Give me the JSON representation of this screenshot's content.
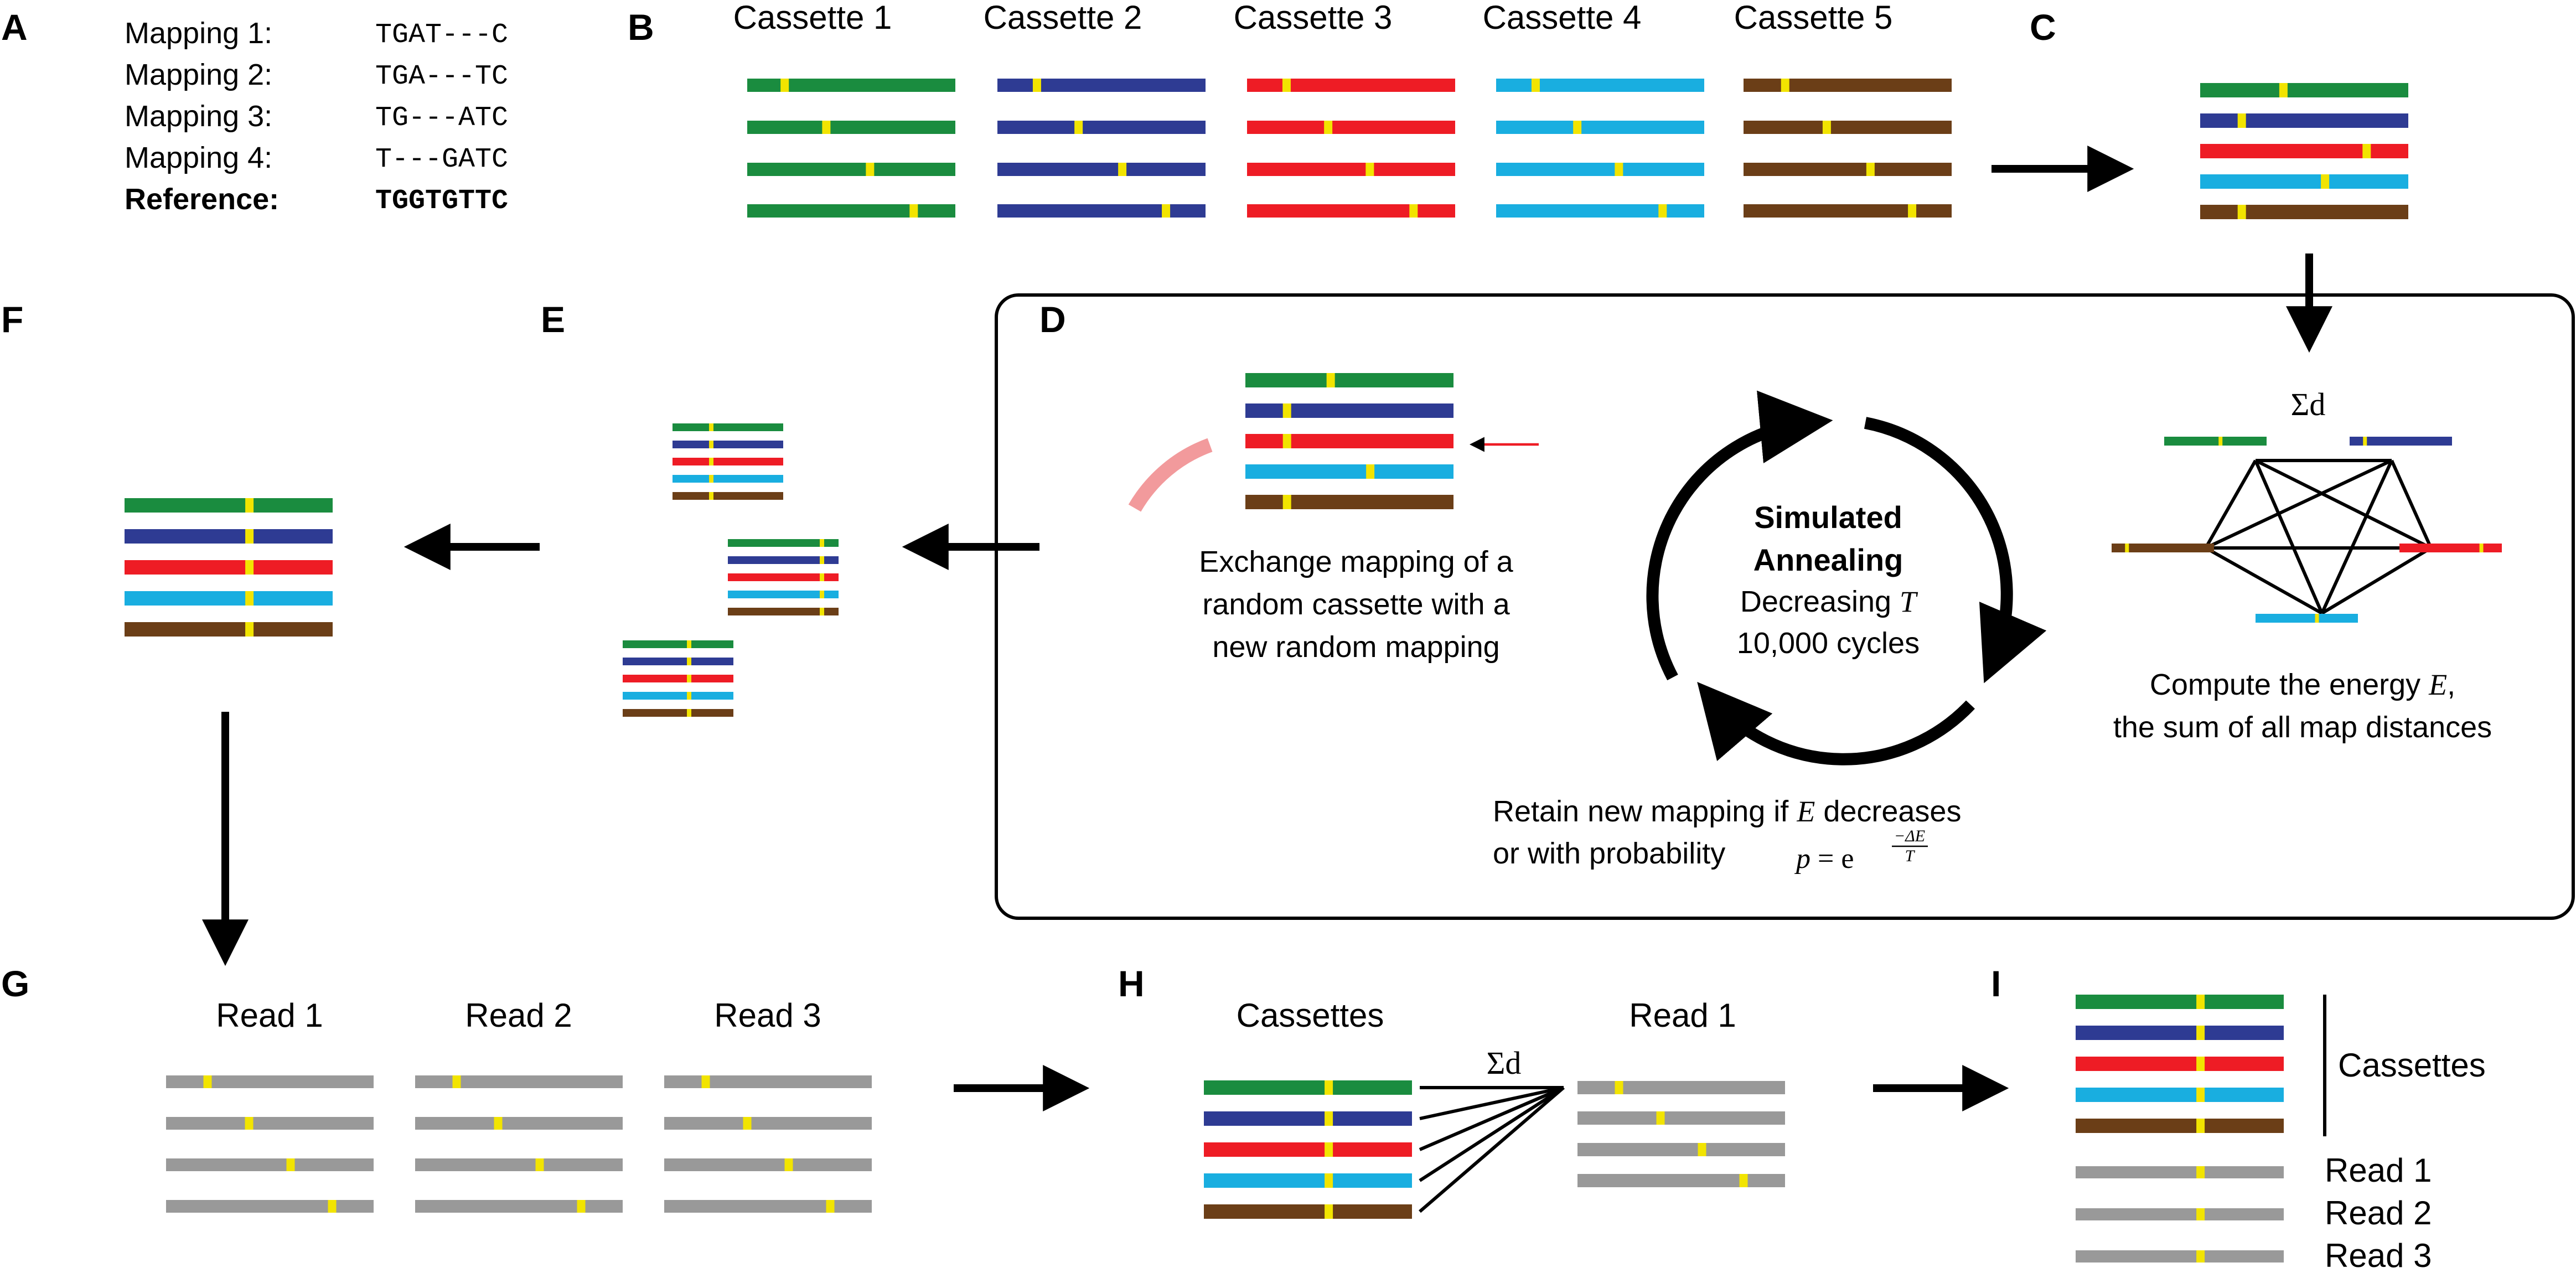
{
  "colors": {
    "green": "#1a8c3f",
    "blue": "#2e3b93",
    "red": "#ee1c25",
    "cyan": "#19aee0",
    "brown": "#6b3e17",
    "gray": "#999999",
    "marker": "#f2e400",
    "arc": "#f29a9c",
    "arrow": "#000000",
    "pointer": "#ee1c25"
  },
  "panels": {
    "A": "A",
    "B": "B",
    "C": "C",
    "D": "D",
    "E": "E",
    "F": "F",
    "G": "G",
    "H": "H",
    "I": "I"
  },
  "mapping_table": {
    "rows": [
      {
        "label": "Mapping 1:",
        "seq": "TGAT---C"
      },
      {
        "label": "Mapping 2:",
        "seq": "TGA---TC"
      },
      {
        "label": "Mapping 3:",
        "seq": "TG---ATC"
      },
      {
        "label": "Mapping 4:",
        "seq": "T---GATC"
      },
      {
        "label": "Reference:",
        "seq": "TGGTGTTC"
      }
    ]
  },
  "cassettes": [
    {
      "title": "Cassette 1",
      "color": "green",
      "markers": [
        0.18,
        0.38,
        0.59,
        0.8
      ]
    },
    {
      "title": "Cassette 2",
      "color": "blue",
      "markers": [
        0.19,
        0.39,
        0.6,
        0.81
      ]
    },
    {
      "title": "Cassette 3",
      "color": "red",
      "markers": [
        0.19,
        0.39,
        0.59,
        0.8
      ]
    },
    {
      "title": "Cassette 4",
      "color": "cyan",
      "markers": [
        0.19,
        0.39,
        0.59,
        0.8
      ]
    },
    {
      "title": "Cassette 5",
      "color": "brown",
      "markers": [
        0.2,
        0.4,
        0.61,
        0.81
      ]
    }
  ],
  "panel_c_markers": [
    0.4,
    0.2,
    0.8,
    0.6,
    0.2
  ],
  "panel_d": {
    "stack_markers": [
      0.41,
      0.2,
      0.2,
      0.6,
      0.2
    ],
    "exchange_text": [
      "Exchange mapping of a",
      "random cassette with a",
      "new random mapping"
    ],
    "cycle": {
      "line1": "Simulated",
      "line2": "Annealing",
      "line3_prefix": "Decreasing ",
      "line3_var": "T",
      "line4": "10,000 cycles"
    },
    "sum_symbol": "Σd",
    "energy_text": {
      "line1_prefix": "Compute the energy ",
      "line1_var": "E",
      "line1_suffix": ",",
      "line2": "the sum of all map distances"
    },
    "retain_text": {
      "line1_prefix": "Retain new mapping if ",
      "line1_var": "E",
      "line1_suffix": " decreases",
      "line2": "or with probability",
      "formula_p": "p",
      "formula_eq": " = e",
      "formula_num": "−ΔE",
      "formula_den": "T"
    },
    "network_markers": [
      0.55,
      0.15,
      0.8,
      0.6,
      0.15
    ]
  },
  "panel_e_stacks": [
    [
      0.35,
      0.35,
      0.35,
      0.35,
      0.35
    ],
    [
      0.85,
      0.85,
      0.85,
      0.85,
      0.85
    ],
    [
      0.6,
      0.6,
      0.6,
      0.6,
      0.6
    ]
  ],
  "panel_f_markers": [
    0.6,
    0.6,
    0.6,
    0.6,
    0.6
  ],
  "reads": [
    {
      "title": "Read 1",
      "markers": [
        0.2,
        0.4,
        0.6,
        0.8
      ]
    },
    {
      "title": "Read 2",
      "markers": [
        0.2,
        0.4,
        0.6,
        0.8
      ]
    },
    {
      "title": "Read 3",
      "markers": [
        0.2,
        0.4,
        0.6,
        0.8
      ]
    }
  ],
  "panel_h": {
    "cassettes_title": "Cassettes",
    "read_title": "Read 1",
    "sum_symbol": "Σd",
    "cassette_markers": [
      0.6,
      0.6,
      0.6,
      0.6,
      0.6
    ],
    "read_markers": [
      0.2,
      0.4,
      0.6,
      0.8
    ]
  },
  "panel_i": {
    "cassettes_label": "Cassettes",
    "read_labels": [
      "Read 1",
      "Read 2",
      "Read 3"
    ],
    "marker": 0.6
  }
}
